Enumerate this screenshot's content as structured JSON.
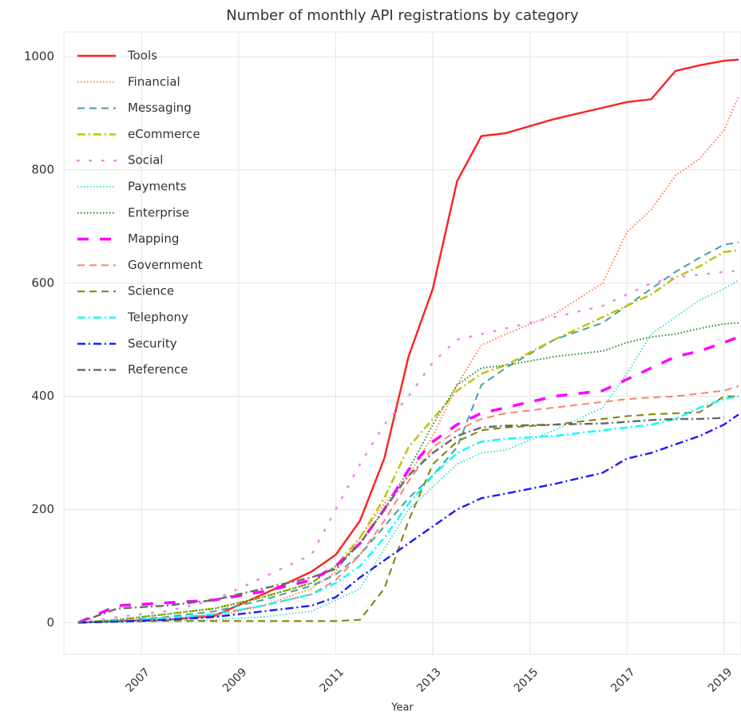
{
  "chart_data": {
    "type": "line",
    "title": "Number of monthly API registrations by category",
    "xlabel": "Year",
    "xlim": [
      2005.4,
      2019.35
    ],
    "xticks": [
      2007,
      2009,
      2011,
      2013,
      2015,
      2017,
      2019
    ],
    "ylim": [
      -56,
      1044
    ],
    "yticks": [
      0,
      200,
      400,
      600,
      800,
      1000
    ],
    "grid": true,
    "legend": "upper left",
    "x": [
      2005.7,
      2006.5,
      2007.5,
      2008.5,
      2009.5,
      2010.5,
      2011.0,
      2011.5,
      2012.0,
      2012.5,
      2013.0,
      2013.5,
      2014.0,
      2014.5,
      2015.5,
      2016.5,
      2017.0,
      2017.5,
      2018.0,
      2018.5,
      2019.0,
      2019.3
    ],
    "series": [
      {
        "name": "Tools",
        "color": "#ff2020",
        "linestyle": "solid",
        "values": [
          0,
          3,
          5,
          12,
          50,
          90,
          120,
          180,
          290,
          470,
          590,
          780,
          860,
          865,
          890,
          910,
          920,
          925,
          975,
          985,
          993,
          995
        ]
      },
      {
        "name": "Financial",
        "color": "#ff7f50",
        "linestyle": "dotted",
        "values": [
          0,
          2,
          5,
          10,
          30,
          60,
          90,
          150,
          210,
          260,
          330,
          420,
          490,
          510,
          545,
          600,
          690,
          730,
          790,
          820,
          870,
          930
        ]
      },
      {
        "name": "Messaging",
        "color": "#4a9ea0",
        "linestyle": "dashed",
        "values": [
          0,
          3,
          10,
          20,
          40,
          65,
          85,
          120,
          170,
          220,
          260,
          310,
          420,
          450,
          500,
          530,
          560,
          590,
          620,
          645,
          668,
          672
        ]
      },
      {
        "name": "eCommerce",
        "color": "#bfbf00",
        "linestyle": "dashdot",
        "values": [
          0,
          5,
          15,
          25,
          45,
          70,
          100,
          150,
          220,
          310,
          360,
          410,
          440,
          455,
          500,
          540,
          560,
          580,
          610,
          630,
          655,
          658
        ]
      },
      {
        "name": "Social",
        "color": "#ee82ee",
        "linestyle": "sparse",
        "values": [
          0,
          10,
          20,
          40,
          80,
          120,
          200,
          280,
          350,
          400,
          460,
          500,
          510,
          520,
          540,
          560,
          580,
          600,
          610,
          615,
          620,
          622
        ]
      },
      {
        "name": "Payments",
        "color": "#40e0d0",
        "linestyle": "dotted",
        "values": [
          0,
          1,
          3,
          5,
          10,
          20,
          40,
          60,
          130,
          200,
          240,
          280,
          300,
          305,
          340,
          380,
          440,
          510,
          540,
          570,
          590,
          605
        ]
      },
      {
        "name": "Enterprise",
        "color": "#228b22",
        "linestyle": "dotted",
        "values": [
          0,
          5,
          15,
          25,
          45,
          70,
          100,
          140,
          200,
          270,
          350,
          420,
          450,
          455,
          470,
          480,
          495,
          505,
          510,
          520,
          528,
          530
        ]
      },
      {
        "name": "Mapping",
        "color": "#ff00ff",
        "linestyle": "longdash",
        "values": [
          0,
          30,
          35,
          40,
          55,
          75,
          100,
          140,
          200,
          270,
          320,
          350,
          370,
          380,
          400,
          410,
          430,
          450,
          470,
          480,
          495,
          505
        ]
      },
      {
        "name": "Government",
        "color": "#fa8072",
        "linestyle": "dashed",
        "values": [
          0,
          2,
          5,
          15,
          30,
          50,
          75,
          120,
          180,
          250,
          310,
          340,
          360,
          370,
          380,
          390,
          395,
          398,
          400,
          405,
          410,
          418
        ]
      },
      {
        "name": "Science",
        "color": "#808000",
        "linestyle": "dashed",
        "values": [
          0,
          2,
          3,
          3,
          3,
          3,
          3,
          5,
          60,
          180,
          280,
          320,
          340,
          345,
          350,
          360,
          365,
          368,
          370,
          372,
          400,
          400
        ]
      },
      {
        "name": "Telephony",
        "color": "#00ffff",
        "linestyle": "dashdot",
        "values": [
          0,
          3,
          8,
          15,
          30,
          50,
          70,
          100,
          150,
          210,
          260,
          300,
          320,
          325,
          330,
          340,
          345,
          350,
          360,
          380,
          395,
          400
        ]
      },
      {
        "name": "Security",
        "color": "#1a1aff",
        "linestyle": "dashdot",
        "values": [
          0,
          2,
          5,
          10,
          20,
          30,
          45,
          80,
          110,
          140,
          170,
          200,
          220,
          228,
          245,
          265,
          290,
          300,
          315,
          330,
          350,
          368
        ]
      },
      {
        "name": "Reference",
        "color": "#696969",
        "linestyle": "dashdot",
        "values": [
          0,
          25,
          30,
          40,
          60,
          80,
          95,
          140,
          200,
          260,
          300,
          330,
          345,
          348,
          350,
          352,
          355,
          358,
          360,
          360,
          362,
          null
        ]
      }
    ]
  }
}
